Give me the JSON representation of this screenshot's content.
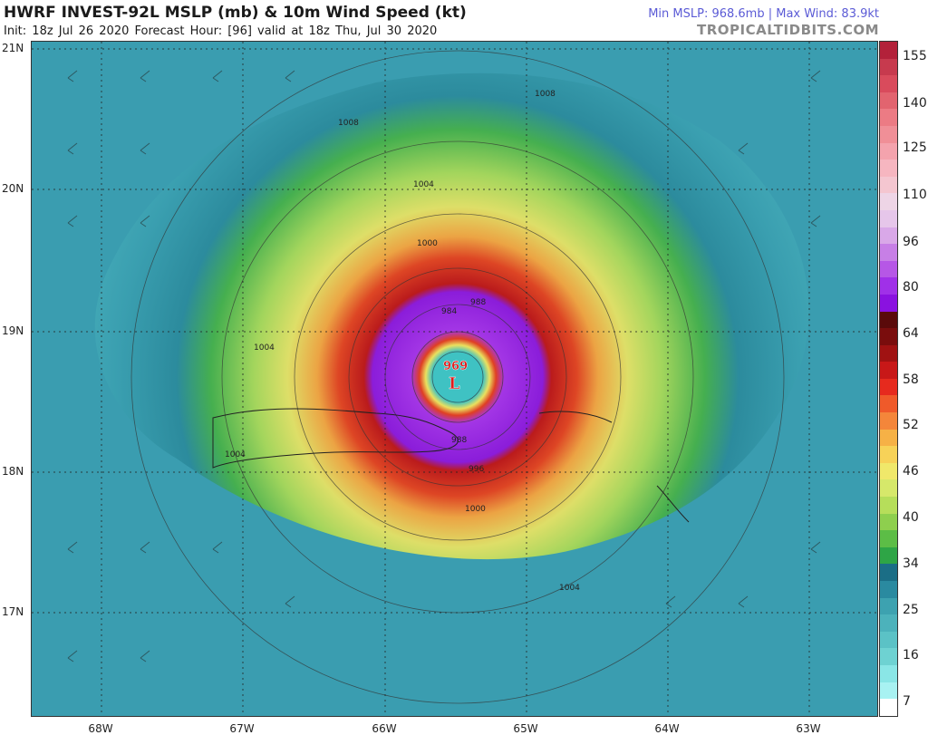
{
  "header": {
    "title": "HWRF INVEST-92L MSLP (mb) & 10m Wind Speed (kt)",
    "subtitle": "Init: 18z Jul 26 2020   Forecast Hour: [96]   valid at 18z Thu, Jul 30 2020",
    "stats": "Min MSLP: 968.6mb | Max Wind: 83.9kt",
    "brand": "TROPICALTIDBITS.COM"
  },
  "map": {
    "lat_labels": [
      "21N",
      "20N",
      "19N",
      "18N",
      "17N"
    ],
    "lon_labels": [
      "68W",
      "67W",
      "66W",
      "65W",
      "64W",
      "63W"
    ],
    "low_center": {
      "pressure": "969",
      "symbol": "L"
    },
    "isobar_labels": [
      "1008",
      "1008",
      "1004",
      "1004",
      "1004",
      "1000",
      "1000",
      "1004",
      "996",
      "988",
      "984",
      "988"
    ]
  },
  "colorbar": {
    "labels": [
      "155",
      "140",
      "125",
      "110",
      "96",
      "80",
      "64",
      "58",
      "52",
      "46",
      "40",
      "34",
      "25",
      "16",
      "7"
    ],
    "colors": [
      "#b3213a",
      "#c73a4e",
      "#d94b5c",
      "#e2646f",
      "#ec7b84",
      "#f08f97",
      "#f4a3ad",
      "#f6b6c0",
      "#f4c6d0",
      "#eed5e6",
      "#e6c6ea",
      "#d9a8e8",
      "#c77fe6",
      "#b657e6",
      "#a030e8",
      "#8a12e0",
      "#5a0a0a",
      "#7a0d0d",
      "#a01212",
      "#c81818",
      "#e62a1e",
      "#ef5a2a",
      "#f4863a",
      "#f6b146",
      "#f7d258",
      "#f0e86a",
      "#d6e86a",
      "#b6de5a",
      "#8ecf4e",
      "#5cbd46",
      "#2ea546",
      "#1b6e86",
      "#2a8aa0",
      "#3da2b0",
      "#4cb2bb",
      "#5bc2c6",
      "#6ed2d2",
      "#8ae6e6",
      "#a8f2f2",
      "#ffffff"
    ],
    "accent_low": "#e11b1b"
  }
}
